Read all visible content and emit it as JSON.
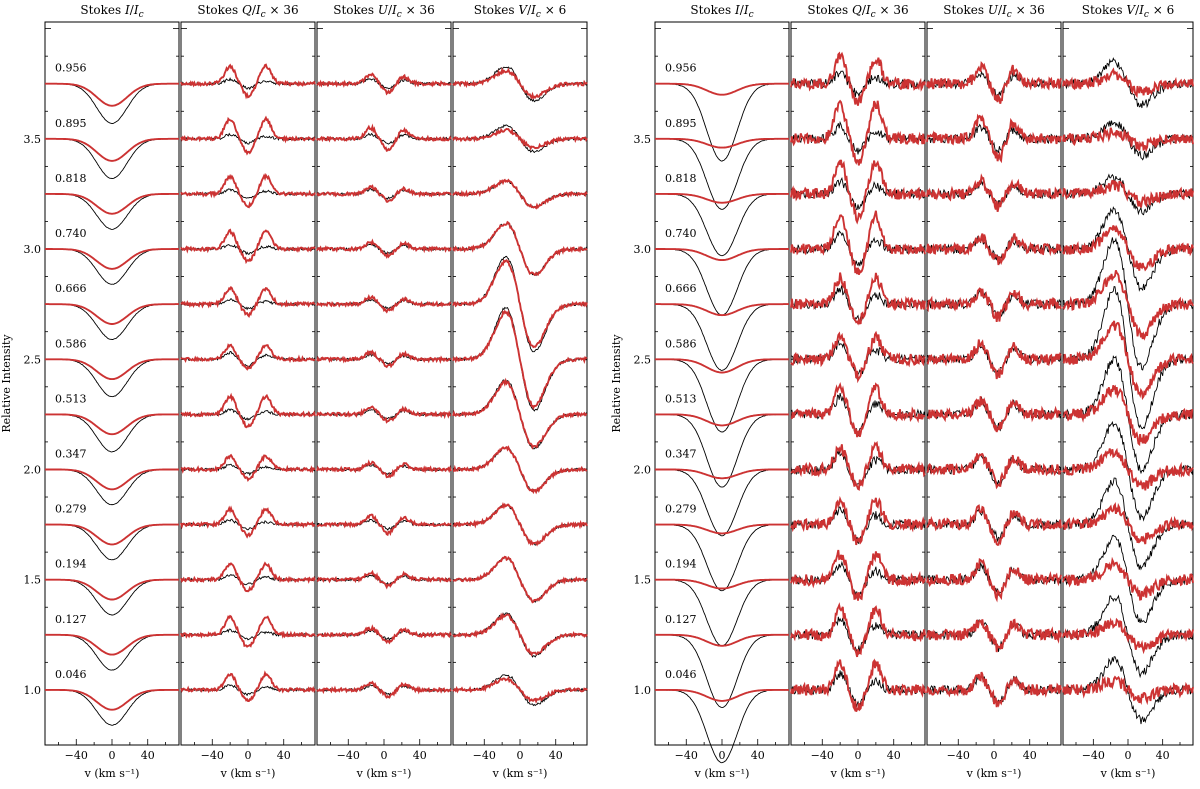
{
  "chart_data": {
    "type": "line",
    "ylabel": "Relative Intensity",
    "xlabel": "v (km s⁻¹)",
    "xlim": [
      -75,
      75
    ],
    "ylim": [
      0.75,
      4.03
    ],
    "xticks": [
      -40,
      0,
      40
    ],
    "yticks": [
      1.0,
      1.5,
      2.0,
      2.5,
      3.0,
      3.5
    ],
    "phases": [
      "0.956",
      "0.895",
      "0.818",
      "0.740",
      "0.666",
      "0.586",
      "0.513",
      "0.347",
      "0.279",
      "0.194",
      "0.127",
      "0.046"
    ],
    "offsets": [
      3.75,
      3.5,
      3.25,
      3.0,
      2.75,
      2.5,
      2.25,
      2.0,
      1.75,
      1.5,
      1.25,
      1.0
    ],
    "panel_titles": [
      "Stokes I/Ic",
      "Stokes Q/Ic × 36",
      "Stokes U/Ic × 36",
      "Stokes V/Ic × 6"
    ],
    "series_colors": {
      "observed": "#000000",
      "model": "#cc3333"
    },
    "left": {
      "I_obs_depth": [
        0.18,
        0.18,
        0.16,
        0.16,
        0.16,
        0.17,
        0.17,
        0.16,
        0.16,
        0.16,
        0.16,
        0.16
      ],
      "I_mod_depth": [
        0.1,
        0.1,
        0.09,
        0.09,
        0.09,
        0.09,
        0.09,
        0.09,
        0.09,
        0.09,
        0.09,
        0.09
      ],
      "Q_obs_amp": [
        0.02,
        0.02,
        0.02,
        0.02,
        0.02,
        0.03,
        0.02,
        0.02,
        0.02,
        0.02,
        0.02,
        0.02
      ],
      "Q_mod_amp": [
        0.08,
        0.09,
        0.08,
        0.08,
        0.07,
        0.06,
        0.08,
        0.06,
        0.07,
        0.07,
        0.08,
        0.07
      ],
      "U_obs_amp": [
        0.02,
        0.02,
        0.02,
        0.02,
        0.02,
        0.02,
        0.02,
        0.02,
        0.02,
        0.02,
        0.02,
        0.02
      ],
      "U_mod_amp": [
        0.04,
        0.05,
        0.03,
        0.03,
        0.03,
        0.03,
        0.03,
        0.03,
        0.04,
        0.03,
        0.03,
        0.03
      ],
      "V_obs_amp": [
        0.08,
        0.06,
        0.06,
        0.12,
        0.22,
        0.24,
        0.16,
        0.1,
        0.09,
        0.1,
        0.1,
        0.07
      ],
      "V_mod_amp": [
        0.06,
        0.04,
        0.06,
        0.12,
        0.2,
        0.22,
        0.15,
        0.1,
        0.09,
        0.1,
        0.09,
        0.05
      ]
    },
    "right": {
      "I_obs_depth": [
        0.35,
        0.32,
        0.28,
        0.3,
        0.3,
        0.33,
        0.33,
        0.3,
        0.3,
        0.3,
        0.33,
        0.33
      ],
      "I_mod_depth": [
        0.05,
        0.04,
        0.04,
        0.05,
        0.05,
        0.06,
        0.05,
        0.04,
        0.04,
        0.04,
        0.05,
        0.05
      ],
      "Q_obs_amp": [
        0.05,
        0.06,
        0.06,
        0.07,
        0.07,
        0.07,
        0.08,
        0.07,
        0.07,
        0.07,
        0.07,
        0.07
      ],
      "Q_mod_amp": [
        0.12,
        0.16,
        0.15,
        0.15,
        0.12,
        0.1,
        0.12,
        0.1,
        0.11,
        0.12,
        0.12,
        0.12
      ],
      "U_obs_amp": [
        0.05,
        0.05,
        0.05,
        0.05,
        0.05,
        0.06,
        0.06,
        0.06,
        0.06,
        0.06,
        0.06,
        0.06
      ],
      "U_mod_amp": [
        0.08,
        0.09,
        0.06,
        0.06,
        0.06,
        0.07,
        0.06,
        0.06,
        0.07,
        0.07,
        0.06,
        0.06
      ],
      "V_obs_amp": [
        0.1,
        0.08,
        0.08,
        0.18,
        0.3,
        0.32,
        0.26,
        0.22,
        0.2,
        0.2,
        0.18,
        0.14
      ],
      "V_mod_amp": [
        0.04,
        0.03,
        0.04,
        0.09,
        0.14,
        0.16,
        0.12,
        0.08,
        0.07,
        0.07,
        0.06,
        0.04
      ]
    }
  }
}
